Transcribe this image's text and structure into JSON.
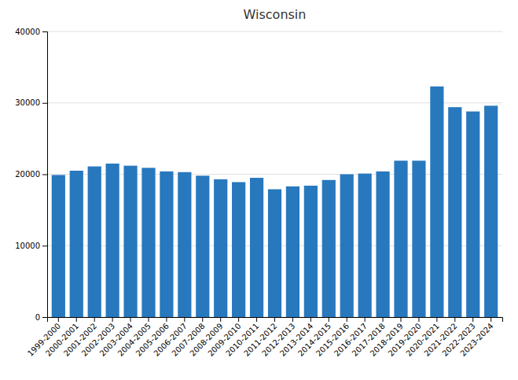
{
  "chart_data": {
    "type": "bar",
    "title": "Wisconsin",
    "categories": [
      "1999-2000",
      "2000-2001",
      "2001-2002",
      "2002-2003",
      "2003-2004",
      "2004-2005",
      "2005-2006",
      "2006-2007",
      "2007-2008",
      "2008-2009",
      "2009-2010",
      "2010-2011",
      "2011-2012",
      "2012-2013",
      "2013-2014",
      "2014-2015",
      "2015-2016",
      "2016-2017",
      "2017-2018",
      "2018-2019",
      "2019-2020",
      "2020-2021",
      "2021-2022",
      "2022-2023",
      "2023-2024"
    ],
    "values": [
      19900,
      20500,
      21100,
      21500,
      21200,
      20900,
      20400,
      20300,
      19800,
      19300,
      18900,
      19500,
      17900,
      18300,
      18400,
      19200,
      20000,
      20100,
      20400,
      21900,
      21900,
      32300,
      29400,
      28800,
      29600
    ],
    "color": "#2878BE",
    "ylim": [
      0,
      40000
    ],
    "yticks": [
      0,
      10000,
      20000,
      30000,
      40000
    ],
    "grid": true
  }
}
